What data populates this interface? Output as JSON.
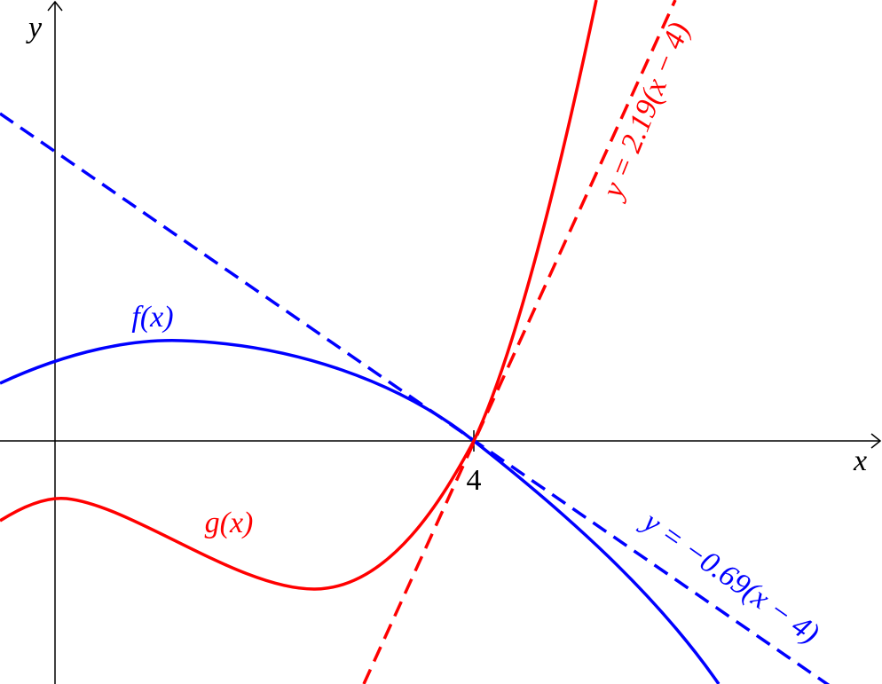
{
  "axes": {
    "x_label": "x",
    "y_label": "y",
    "tick": "4"
  },
  "curves": [
    {
      "label": "f(x)"
    },
    {
      "label": "g(x)"
    }
  ],
  "tangents": [
    {
      "label": "y = 2.19(x − 4)"
    },
    {
      "label": "y = −0.69(x − 4)"
    }
  ]
}
